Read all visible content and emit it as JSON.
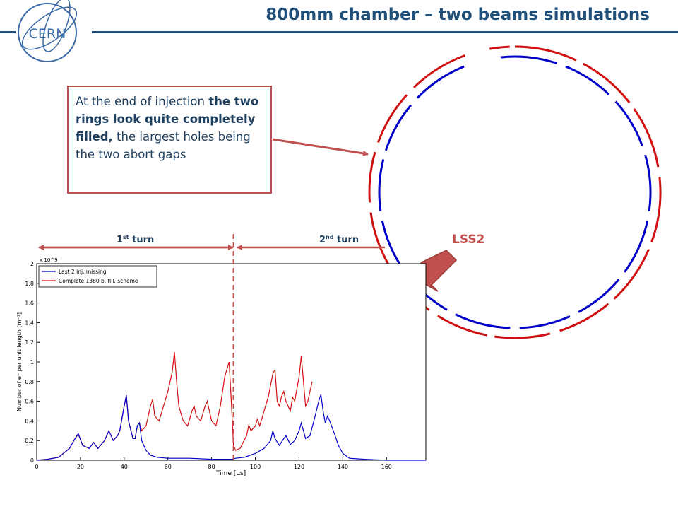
{
  "slide": {
    "title": "800mm chamber – two beams simulations",
    "logo_text": "CERN",
    "callout": {
      "text_1": "At the end of injection ",
      "bold_1": "the two rings look quite completely filled,",
      "text_2": " the largest holes being the two abort gaps"
    },
    "turn_labels": {
      "first_base": "1",
      "first_sup": "st",
      "first_rest": " turn",
      "second_base": "2",
      "second_sup": "nd",
      "second_rest": " turn"
    },
    "ring_label": "LSS2",
    "colors": {
      "title": "#1f4e79",
      "accent_red": "#c0504d",
      "beam_blue": "#0000c8",
      "beam_red": "#d01010"
    }
  },
  "chart_data": {
    "type": "line",
    "xlabel": "Time [μs]",
    "ylabel": "Number of e⁻ per unit length [m⁻¹]",
    "y_multiplier": "x 10^9",
    "xlim": [
      0,
      178
    ],
    "ylim": [
      0,
      2
    ],
    "x_ticks": [
      0,
      20,
      40,
      60,
      80,
      100,
      120,
      140,
      160
    ],
    "y_ticks": [
      0,
      0.2,
      0.4,
      0.6,
      0.8,
      1,
      1.2,
      1.4,
      1.6,
      1.8,
      2
    ],
    "grid": false,
    "legend_position": "top-left",
    "marker_line_x": 90,
    "series": [
      {
        "name": "Last 2 inj. missing",
        "color": "#0000c8",
        "points": [
          [
            0,
            0
          ],
          [
            5,
            0.01
          ],
          [
            10,
            0.03
          ],
          [
            15,
            0.12
          ],
          [
            17,
            0.2
          ],
          [
            19,
            0.27
          ],
          [
            21,
            0.15
          ],
          [
            24,
            0.12
          ],
          [
            26,
            0.18
          ],
          [
            28,
            0.12
          ],
          [
            31,
            0.2
          ],
          [
            33,
            0.3
          ],
          [
            35,
            0.2
          ],
          [
            37,
            0.25
          ],
          [
            38,
            0.3
          ],
          [
            40,
            0.55
          ],
          [
            41,
            0.66
          ],
          [
            42,
            0.4
          ],
          [
            44,
            0.22
          ],
          [
            45,
            0.22
          ],
          [
            46,
            0.35
          ],
          [
            47,
            0.38
          ],
          [
            48,
            0.2
          ],
          [
            50,
            0.1
          ],
          [
            52,
            0.05
          ],
          [
            55,
            0.03
          ],
          [
            60,
            0.02
          ],
          [
            70,
            0.02
          ],
          [
            80,
            0.01
          ],
          [
            89,
            0.01
          ],
          [
            91,
            0.02
          ],
          [
            95,
            0.03
          ],
          [
            100,
            0.07
          ],
          [
            104,
            0.12
          ],
          [
            107,
            0.2
          ],
          [
            108,
            0.3
          ],
          [
            109,
            0.22
          ],
          [
            111,
            0.15
          ],
          [
            113,
            0.22
          ],
          [
            114,
            0.25
          ],
          [
            116,
            0.16
          ],
          [
            118,
            0.2
          ],
          [
            120,
            0.3
          ],
          [
            121,
            0.38
          ],
          [
            123,
            0.22
          ],
          [
            125,
            0.25
          ],
          [
            127,
            0.42
          ],
          [
            129,
            0.6
          ],
          [
            130,
            0.67
          ],
          [
            131,
            0.5
          ],
          [
            132,
            0.38
          ],
          [
            133,
            0.45
          ],
          [
            134,
            0.4
          ],
          [
            136,
            0.28
          ],
          [
            138,
            0.15
          ],
          [
            140,
            0.07
          ],
          [
            143,
            0.02
          ],
          [
            150,
            0.01
          ],
          [
            160,
            0.0
          ],
          [
            178,
            0.0
          ]
        ]
      },
      {
        "name": "Complete 1380 b. fill. scheme",
        "color": "#d01010",
        "points": [
          [
            0,
            0
          ],
          [
            5,
            0.01
          ],
          [
            10,
            0.03
          ],
          [
            15,
            0.12
          ],
          [
            17,
            0.2
          ],
          [
            19,
            0.27
          ],
          [
            21,
            0.15
          ],
          [
            24,
            0.12
          ],
          [
            26,
            0.18
          ],
          [
            28,
            0.12
          ],
          [
            31,
            0.2
          ],
          [
            33,
            0.3
          ],
          [
            35,
            0.2
          ],
          [
            37,
            0.25
          ],
          [
            38,
            0.3
          ],
          [
            40,
            0.55
          ],
          [
            41,
            0.66
          ],
          [
            42,
            0.4
          ],
          [
            44,
            0.22
          ],
          [
            45,
            0.22
          ],
          [
            46,
            0.35
          ],
          [
            47,
            0.38
          ],
          [
            48,
            0.3
          ],
          [
            50,
            0.35
          ],
          [
            52,
            0.55
          ],
          [
            53,
            0.62
          ],
          [
            54,
            0.45
          ],
          [
            56,
            0.4
          ],
          [
            58,
            0.55
          ],
          [
            60,
            0.7
          ],
          [
            62,
            0.9
          ],
          [
            63,
            1.1
          ],
          [
            64,
            0.8
          ],
          [
            65,
            0.55
          ],
          [
            67,
            0.4
          ],
          [
            69,
            0.35
          ],
          [
            71,
            0.5
          ],
          [
            72,
            0.55
          ],
          [
            73,
            0.45
          ],
          [
            75,
            0.4
          ],
          [
            77,
            0.55
          ],
          [
            78,
            0.6
          ],
          [
            80,
            0.4
          ],
          [
            82,
            0.35
          ],
          [
            84,
            0.55
          ],
          [
            86,
            0.85
          ],
          [
            88,
            1.0
          ],
          [
            89,
            0.6
          ],
          [
            90,
            0.15
          ],
          [
            91,
            0.1
          ],
          [
            93,
            0.12
          ],
          [
            96,
            0.25
          ],
          [
            97,
            0.36
          ],
          [
            98,
            0.3
          ],
          [
            100,
            0.35
          ],
          [
            101,
            0.42
          ],
          [
            102,
            0.35
          ],
          [
            104,
            0.5
          ],
          [
            106,
            0.65
          ],
          [
            108,
            0.88
          ],
          [
            109,
            0.92
          ],
          [
            110,
            0.6
          ],
          [
            111,
            0.55
          ],
          [
            112,
            0.65
          ],
          [
            113,
            0.7
          ],
          [
            114,
            0.6
          ],
          [
            116,
            0.5
          ],
          [
            117,
            0.64
          ],
          [
            118,
            0.6
          ],
          [
            120,
            0.85
          ],
          [
            121,
            1.06
          ],
          [
            122,
            0.8
          ],
          [
            123,
            0.55
          ],
          [
            124,
            0.6
          ],
          [
            125,
            0.7
          ],
          [
            126,
            0.8
          ]
        ]
      }
    ]
  }
}
